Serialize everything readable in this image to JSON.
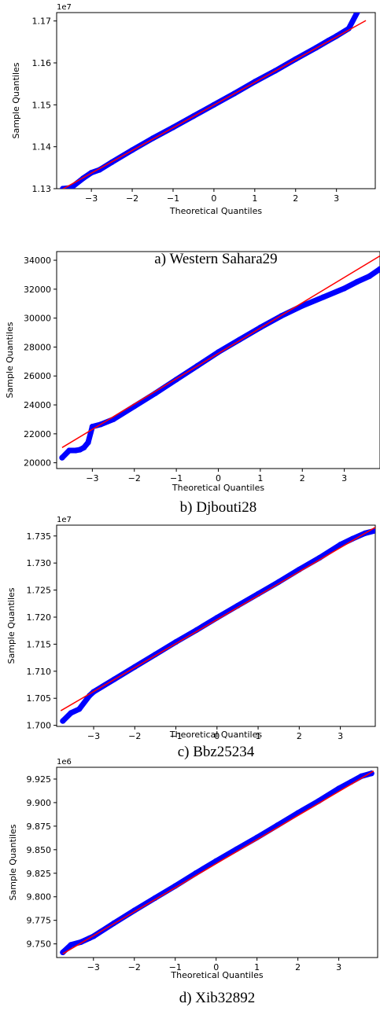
{
  "colors": {
    "points": "#0000ff",
    "line": "#ff0000",
    "axis": "#000000",
    "background": "#ffffff"
  },
  "chart_data": [
    {
      "type": "scatter",
      "caption": "a) Western Sahara29",
      "xlabel": "Theoretical Quantiles",
      "ylabel": "Sample Quantiles",
      "offset_label": "1e7",
      "xlim": [
        -3.85,
        3.95
      ],
      "ylim": [
        11.3,
        11.72
      ],
      "xticks": [
        -3,
        -2,
        -1,
        0,
        1,
        2,
        3
      ],
      "xtick_labels": [
        "−3",
        "−2",
        "−1",
        "0",
        "1",
        "2",
        "3"
      ],
      "yticks": [
        11.3,
        11.4,
        11.5,
        11.6,
        11.7
      ],
      "ytick_labels": [
        "1.13",
        "1.14",
        "1.15",
        "1.16",
        "1.17"
      ],
      "reference_line": {
        "from": [
          -3.72,
          11.298
        ],
        "to": [
          3.72,
          11.701
        ]
      },
      "points": [
        [
          -3.7,
          11.3
        ],
        [
          -3.5,
          11.302
        ],
        [
          -3.2,
          11.325
        ],
        [
          -3.0,
          11.338
        ],
        [
          -2.8,
          11.345
        ],
        [
          -2.5,
          11.363
        ],
        [
          -2.0,
          11.392
        ],
        [
          -1.5,
          11.42
        ],
        [
          -1.0,
          11.446
        ],
        [
          -0.5,
          11.473
        ],
        [
          0.0,
          11.5
        ],
        [
          0.5,
          11.527
        ],
        [
          1.0,
          11.555
        ],
        [
          1.5,
          11.581
        ],
        [
          2.0,
          11.609
        ],
        [
          2.5,
          11.636
        ],
        [
          2.8,
          11.653
        ],
        [
          3.0,
          11.664
        ],
        [
          3.3,
          11.682
        ],
        [
          3.55,
          11.728
        ],
        [
          3.7,
          11.744
        ]
      ]
    },
    {
      "type": "scatter",
      "caption": "b) Djbouti28",
      "xlabel": "Theoretical Quantiles",
      "ylabel": "Sample Quantiles",
      "offset_label": "",
      "xlim": [
        -3.85,
        3.85
      ],
      "ylim": [
        19600,
        34600
      ],
      "xticks": [
        -3,
        -2,
        -1,
        0,
        1,
        2,
        3
      ],
      "xtick_labels": [
        "−3",
        "−2",
        "−1",
        "0",
        "1",
        "2",
        "3"
      ],
      "yticks": [
        20000,
        22000,
        24000,
        26000,
        28000,
        30000,
        32000,
        34000
      ],
      "ytick_labels": [
        "20000",
        "22000",
        "24000",
        "26000",
        "28000",
        "30000",
        "32000",
        "34000"
      ],
      "reference_line": {
        "from": [
          -3.72,
          21050
        ],
        "to": [
          3.85,
          34300
        ]
      },
      "points": [
        [
          -3.72,
          20350
        ],
        [
          -3.55,
          20850
        ],
        [
          -3.4,
          20850
        ],
        [
          -3.3,
          20900
        ],
        [
          -3.2,
          21050
        ],
        [
          -3.1,
          21400
        ],
        [
          -3.0,
          22500
        ],
        [
          -2.8,
          22650
        ],
        [
          -2.5,
          23000
        ],
        [
          -2.0,
          23900
        ],
        [
          -1.5,
          24800
        ],
        [
          -1.0,
          25750
        ],
        [
          -0.5,
          26700
        ],
        [
          0.0,
          27650
        ],
        [
          0.5,
          28500
        ],
        [
          1.0,
          29350
        ],
        [
          1.5,
          30150
        ],
        [
          2.0,
          30850
        ],
        [
          2.5,
          31450
        ],
        [
          3.0,
          32050
        ],
        [
          3.3,
          32500
        ],
        [
          3.6,
          32900
        ],
        [
          3.85,
          33400
        ]
      ]
    },
    {
      "type": "scatter",
      "caption": "c) Bbz25234",
      "xlabel": "Theoretical Quantiles",
      "ylabel": "Sample Quantiles",
      "offset_label": "1e7",
      "xlim": [
        -3.9,
        3.85
      ],
      "ylim": [
        16.998,
        17.37
      ],
      "xticks": [
        -3,
        -2,
        -1,
        0,
        1,
        2,
        3
      ],
      "xtick_labels": [
        "−3",
        "−2",
        "−1",
        "0",
        "1",
        "2",
        "3"
      ],
      "yticks": [
        17.0,
        17.05,
        17.1,
        17.15,
        17.2,
        17.25,
        17.3,
        17.35
      ],
      "ytick_labels": [
        "1.700",
        "1.705",
        "1.710",
        "1.715",
        "1.720",
        "1.725",
        "1.730",
        "1.735"
      ],
      "reference_line": {
        "from": [
          -3.8,
          17.027
        ],
        "to": [
          3.85,
          17.366
        ]
      },
      "points": [
        [
          -3.75,
          17.008
        ],
        [
          -3.55,
          17.023
        ],
        [
          -3.35,
          17.03
        ],
        [
          -3.1,
          17.055
        ],
        [
          -3.0,
          17.062
        ],
        [
          -2.5,
          17.085
        ],
        [
          -2.0,
          17.108
        ],
        [
          -1.5,
          17.131
        ],
        [
          -1.0,
          17.154
        ],
        [
          -0.5,
          17.176
        ],
        [
          0.0,
          17.199
        ],
        [
          0.5,
          17.221
        ],
        [
          1.0,
          17.243
        ],
        [
          1.5,
          17.265
        ],
        [
          2.0,
          17.288
        ],
        [
          2.5,
          17.31
        ],
        [
          3.0,
          17.334
        ],
        [
          3.3,
          17.345
        ],
        [
          3.6,
          17.355
        ],
        [
          3.8,
          17.359
        ]
      ]
    },
    {
      "type": "scatter",
      "caption": "d) Xib32892",
      "xlabel": "Theoretical Quantiles",
      "ylabel": "Sample Quantiles",
      "offset_label": "1e6",
      "xlim": [
        -3.9,
        3.95
      ],
      "ylim": [
        9.7355,
        9.9375
      ],
      "xticks": [
        -3,
        -2,
        -1,
        0,
        1,
        2,
        3
      ],
      "xtick_labels": [
        "−3",
        "−2",
        "−1",
        "0",
        "1",
        "2",
        "3"
      ],
      "yticks": [
        9.75,
        9.775,
        9.8,
        9.825,
        9.85,
        9.875,
        9.9,
        9.925
      ],
      "ytick_labels": [
        "9.750",
        "9.775",
        "9.800",
        "9.825",
        "9.850",
        "9.875",
        "9.900",
        "9.925"
      ],
      "reference_line": {
        "from": [
          -3.75,
          9.7395
        ],
        "to": [
          3.85,
          9.9335
        ]
      },
      "points": [
        [
          -3.75,
          9.741
        ],
        [
          -3.55,
          9.749
        ],
        [
          -3.3,
          9.752
        ],
        [
          -3.1,
          9.756
        ],
        [
          -3.0,
          9.758
        ],
        [
          -2.5,
          9.772
        ],
        [
          -2.0,
          9.7855
        ],
        [
          -1.5,
          9.7985
        ],
        [
          -1.0,
          9.8115
        ],
        [
          -0.5,
          9.825
        ],
        [
          0.0,
          9.838
        ],
        [
          0.5,
          9.8505
        ],
        [
          1.0,
          9.863
        ],
        [
          1.5,
          9.876
        ],
        [
          2.0,
          9.889
        ],
        [
          2.5,
          9.9015
        ],
        [
          3.0,
          9.915
        ],
        [
          3.3,
          9.922
        ],
        [
          3.55,
          9.928
        ],
        [
          3.8,
          9.931
        ]
      ]
    }
  ]
}
